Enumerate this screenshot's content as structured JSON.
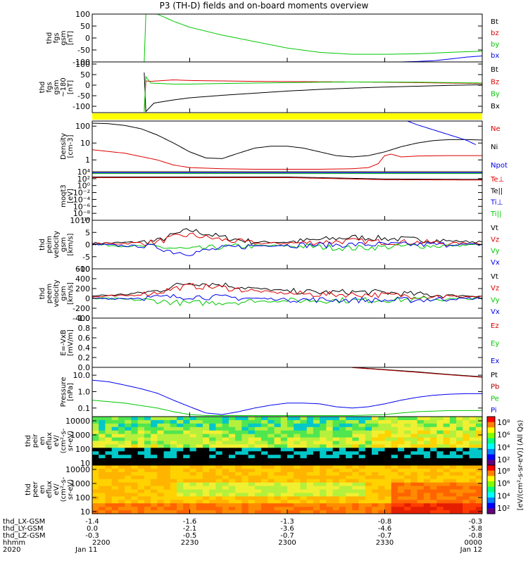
{
  "title": "P3 (TH-D) fields and on-board moments overview",
  "colors": {
    "black": "#000000",
    "red": "#dd0000",
    "green": "#00c800",
    "blue": "#0000ee",
    "yellow": "#ffff00",
    "darkred": "#b40000"
  },
  "chart_data": [
    {
      "type": "line",
      "ylabel": [
        "thd",
        "fgs",
        "gsm",
        "[nT]"
      ],
      "ylim": [
        -100,
        100
      ],
      "yticks": [
        "100",
        "50",
        "0",
        "-50",
        "-100"
      ],
      "legend": [
        {
          "name": "Bt",
          "color": "black"
        },
        {
          "name": "bz",
          "color": "red"
        },
        {
          "name": "by",
          "color": "green"
        },
        {
          "name": "bx",
          "color": "blue"
        }
      ],
      "series": [
        {
          "name": "by",
          "color": "green",
          "x": [
            2216,
            2216.5,
            2220,
            2225,
            2230,
            2240,
            2250,
            2300,
            2310,
            2320,
            2330,
            2340,
            2350,
            2400
          ],
          "y": [
            -100,
            100,
            100,
            70,
            45,
            12,
            -15,
            -42,
            -60,
            -68,
            -68,
            -66,
            -60,
            -55
          ]
        },
        {
          "name": "bx",
          "color": "blue",
          "x": [
            2335,
            2340,
            2345,
            2350,
            2355,
            2400
          ],
          "y": [
            -100,
            -98,
            -95,
            -88,
            -80,
            -75
          ]
        }
      ]
    },
    {
      "type": "line",
      "ylabel": [
        "thd",
        "fgs",
        "gsm",
        "~180",
        "[nT]"
      ],
      "ylim": [
        -130,
        110
      ],
      "yticks": [
        "100",
        "50",
        "0",
        "-50",
        "-100"
      ],
      "legend": [
        {
          "name": "Bt",
          "color": "black"
        },
        {
          "name": "Bz",
          "color": "red"
        },
        {
          "name": "By",
          "color": "green"
        },
        {
          "name": "Bx",
          "color": "black"
        }
      ],
      "series": [
        {
          "name": "Bx",
          "color": "black",
          "x": [
            2216,
            2216.5,
            2219,
            2225,
            2230,
            2240,
            2250,
            2300,
            2310,
            2320,
            2330,
            2340,
            2350,
            2400
          ],
          "y": [
            60,
            -125,
            -85,
            -70,
            -60,
            -48,
            -38,
            -28,
            -20,
            -14,
            -9,
            -5,
            -1,
            2
          ]
        },
        {
          "name": "Bz",
          "color": "red",
          "x": [
            2216,
            2216.5,
            2218,
            2225,
            2230,
            2240,
            2250,
            2300,
            2310,
            2320,
            2330,
            2340,
            2350,
            2400
          ],
          "y": [
            -125,
            20,
            18,
            25,
            22,
            20,
            18,
            17,
            16,
            15,
            14,
            12,
            10,
            8
          ]
        },
        {
          "name": "By",
          "color": "green",
          "x": [
            2216,
            2216.5,
            2218,
            2225,
            2230,
            2240,
            2250,
            2300,
            2310,
            2320,
            2330,
            2340,
            2350,
            2400
          ],
          "y": [
            -125,
            40,
            10,
            5,
            5,
            8,
            10,
            12,
            14,
            15,
            15,
            14,
            12,
            10
          ]
        }
      ]
    },
    {
      "type": "line",
      "ylabel": [
        "Density",
        "[cm-3]"
      ],
      "yscale": "log",
      "ylim": [
        0.2,
        200
      ],
      "yticks": [
        "100",
        "10",
        "1"
      ],
      "legend": [
        {
          "name": "Ne",
          "color": "red"
        },
        {
          "name": "Ni",
          "color": "black"
        },
        {
          "name": "Npot",
          "color": "blue"
        }
      ],
      "series": [
        {
          "name": "Ni",
          "color": "black",
          "x": [
            2200,
            2205,
            2210,
            2215,
            2220,
            2225,
            2230,
            2235,
            2240,
            2245,
            2250,
            2255,
            2300,
            2305,
            2310,
            2315,
            2320,
            2325,
            2330,
            2335,
            2340,
            2345,
            2350,
            2355,
            2400
          ],
          "y": [
            150,
            140,
            110,
            70,
            30,
            10,
            3,
            1.3,
            1.2,
            2.5,
            5,
            6.5,
            6.5,
            5,
            3,
            1.8,
            1.5,
            1.8,
            3,
            6,
            10,
            14,
            16,
            16,
            15
          ]
        },
        {
          "name": "Ne",
          "color": "red",
          "x": [
            2200,
            2210,
            2220,
            2225,
            2230,
            2240,
            2250,
            2300,
            2310,
            2320,
            2325,
            2328,
            2330,
            2332,
            2335,
            2340,
            2350,
            2400
          ],
          "y": [
            4,
            2.5,
            1,
            0.5,
            0.35,
            0.3,
            0.28,
            0.28,
            0.28,
            0.3,
            0.35,
            0.6,
            1.8,
            2.2,
            1.5,
            1.7,
            1.8,
            1.8
          ]
        },
        {
          "name": "Npot",
          "color": "blue",
          "x": [
            2337,
            2340,
            2345,
            2350,
            2355,
            2358
          ],
          "y": [
            200,
            120,
            60,
            30,
            15,
            8
          ]
        }
      ]
    },
    {
      "type": "line",
      "ylabel": [
        "moqt3",
        "[eV]"
      ],
      "yscale": "log",
      "ylim": [
        1e-10,
        10000.0
      ],
      "yticks": [
        "10⁴",
        "10²",
        "10⁰",
        "10⁻²",
        "10⁻⁴",
        "10⁻⁶",
        "10⁻⁸",
        "10⁻¹⁰"
      ],
      "legend": [
        {
          "name": "Te⊥",
          "color": "red"
        },
        {
          "name": "Te||",
          "color": "black"
        },
        {
          "name": "Ti⊥",
          "color": "blue"
        },
        {
          "name": "Ti||",
          "color": "green"
        }
      ],
      "series": [
        {
          "name": "Ti||",
          "color": "green",
          "x": [
            2200,
            2300,
            2400
          ],
          "y": [
            3000,
            3000,
            3000
          ]
        },
        {
          "name": "Ti⊥",
          "color": "blue",
          "x": [
            2200,
            2300,
            2400
          ],
          "y": [
            5000,
            5000,
            5000
          ]
        },
        {
          "name": "Te||",
          "color": "black",
          "x": [
            2200,
            2300,
            2330,
            2400
          ],
          "y": [
            300,
            300,
            80,
            60
          ]
        },
        {
          "name": "Te⊥",
          "color": "red",
          "x": [
            2200,
            2300,
            2330,
            2400
          ],
          "y": [
            200,
            200,
            50,
            40
          ]
        }
      ]
    },
    {
      "type": "line",
      "ylabel": [
        "thd",
        "peim",
        "velocity",
        "gsm",
        "[km/s]"
      ],
      "ylim": [
        -10,
        10
      ],
      "yticks": [
        "10",
        "5",
        "0",
        "-5",
        "-10"
      ],
      "legend": [
        {
          "name": "Vt",
          "color": "black"
        },
        {
          "name": "Vz",
          "color": "red"
        },
        {
          "name": "Vy",
          "color": "green"
        },
        {
          "name": "Vx",
          "color": "blue"
        }
      ],
      "series": [
        {
          "name": "Vt",
          "color": "black",
          "x": [
            2200,
            2210,
            2220,
            2225,
            2230,
            2240,
            2250,
            2300,
            2310,
            2320,
            2330,
            2340,
            2350,
            2400
          ],
          "y": [
            0.5,
            0.8,
            1.5,
            4,
            6,
            3,
            1,
            1,
            2,
            3,
            2.5,
            2,
            1.5,
            1
          ]
        },
        {
          "name": "Vz",
          "color": "red",
          "x": [
            2200,
            2210,
            2220,
            2225,
            2230,
            2240,
            2250,
            2300,
            2310,
            2320,
            2330,
            2340,
            2350,
            2400
          ],
          "y": [
            0.3,
            0.5,
            1,
            3,
            4,
            2,
            0.5,
            0.5,
            1,
            1.5,
            1,
            1,
            0.5,
            0.5
          ]
        },
        {
          "name": "Vy",
          "color": "green",
          "x": [
            2200,
            2210,
            2220,
            2225,
            2230,
            2240,
            2250,
            2300,
            2310,
            2320,
            2330,
            2340,
            2350,
            2400
          ],
          "y": [
            0,
            -0.5,
            -1,
            -1.5,
            -2,
            -1,
            -0.5,
            -0.5,
            -1,
            -1.5,
            -1,
            -0.5,
            -0.5,
            0
          ]
        },
        {
          "name": "Vx",
          "color": "blue",
          "x": [
            2200,
            2210,
            2220,
            2225,
            2230,
            2240,
            2250,
            2300,
            2310,
            2320,
            2330,
            2340,
            2350,
            2400
          ],
          "y": [
            0,
            -0.5,
            -1,
            -3,
            -3.5,
            -1.5,
            -0.5,
            -0.2,
            -0.2,
            0,
            0,
            0,
            0,
            0
          ]
        }
      ]
    },
    {
      "type": "line",
      "ylabel": [
        "thd",
        "peem",
        "velocity",
        "gsm",
        "[km/s]"
      ],
      "ylim": [
        -400,
        600
      ],
      "yticks": [
        "600",
        "400",
        "200",
        "0",
        "-200",
        "-400"
      ],
      "legend": [
        {
          "name": "Vt",
          "color": "black"
        },
        {
          "name": "Vz",
          "color": "red"
        },
        {
          "name": "Vy",
          "color": "green"
        },
        {
          "name": "Vx",
          "color": "blue"
        }
      ],
      "series": [
        {
          "name": "Vt",
          "color": "black",
          "x": [
            2200,
            2210,
            2220,
            2225,
            2230,
            2240,
            2250,
            2300,
            2310,
            2320,
            2330,
            2340,
            2350,
            2400
          ],
          "y": [
            50,
            80,
            150,
            250,
            320,
            280,
            200,
            150,
            120,
            130,
            120,
            80,
            60,
            50
          ]
        },
        {
          "name": "Vz",
          "color": "red",
          "x": [
            2200,
            2210,
            2220,
            2225,
            2230,
            2240,
            2250,
            2300,
            2310,
            2320,
            2330,
            2340,
            2350,
            2400
          ],
          "y": [
            30,
            50,
            120,
            200,
            250,
            220,
            150,
            100,
            80,
            80,
            70,
            50,
            40,
            30
          ]
        },
        {
          "name": "Vy",
          "color": "green",
          "x": [
            2200,
            2210,
            2220,
            2225,
            2230,
            2240,
            2250,
            2300,
            2310,
            2320,
            2330,
            2340,
            2350,
            2400
          ],
          "y": [
            0,
            -20,
            -50,
            -80,
            -100,
            -80,
            -60,
            -50,
            -40,
            -40,
            -30,
            -20,
            -10,
            0
          ]
        },
        {
          "name": "Vx",
          "color": "blue",
          "x": [
            2200,
            2210,
            2220,
            2225,
            2230,
            2240,
            2250,
            2300,
            2310,
            2320,
            2330,
            2340,
            2350,
            2400
          ],
          "y": [
            0,
            0,
            20,
            30,
            40,
            20,
            0,
            -20,
            -30,
            -30,
            -40,
            -30,
            -10,
            0
          ]
        }
      ]
    },
    {
      "type": "line",
      "ylabel": [
        "E=-VxB",
        "[mV/m]"
      ],
      "ylim": [
        0,
        1
      ],
      "yticks": [
        "1.0",
        "0.8",
        "0.6",
        "0.4",
        "0.2",
        "0.0"
      ],
      "legend": [
        {
          "name": "Ez",
          "color": "red"
        },
        {
          "name": "Ey",
          "color": "green"
        },
        {
          "name": "Ex",
          "color": "blue"
        }
      ],
      "series": []
    },
    {
      "type": "line",
      "ylabel": [
        "Pressure",
        "[nPa]"
      ],
      "yscale": "log",
      "ylim": [
        0.03,
        30
      ],
      "yticks": [
        "10.0",
        "1.0",
        "0.1"
      ],
      "legend": [
        {
          "name": "Pt",
          "color": "black"
        },
        {
          "name": "Pb",
          "color": "darkred"
        },
        {
          "name": "Pe",
          "color": "green"
        },
        {
          "name": "Pi",
          "color": "blue"
        }
      ],
      "series": [
        {
          "name": "Pi",
          "color": "blue",
          "x": [
            2200,
            2205,
            2210,
            2215,
            2220,
            2225,
            2230,
            2235,
            2240,
            2245,
            2250,
            2255,
            2300,
            2305,
            2310,
            2315,
            2320,
            2325,
            2330,
            2335,
            2340,
            2345,
            2350,
            2355,
            2400
          ],
          "y": [
            5,
            4,
            2.5,
            1.5,
            0.8,
            0.3,
            0.12,
            0.05,
            0.04,
            0.06,
            0.1,
            0.15,
            0.2,
            0.2,
            0.18,
            0.12,
            0.1,
            0.12,
            0.18,
            0.3,
            0.45,
            0.6,
            0.7,
            0.75,
            0.75
          ]
        },
        {
          "name": "Pe",
          "color": "green",
          "x": [
            2200,
            2210,
            2220,
            2225,
            2230,
            2235,
            2240,
            2250,
            2300,
            2310,
            2320,
            2330,
            2335,
            2340,
            2350,
            2400
          ],
          "y": [
            0.3,
            0.2,
            0.1,
            0.06,
            0.04,
            0.035,
            0.035,
            0.035,
            0.035,
            0.035,
            0.035,
            0.04,
            0.05,
            0.06,
            0.07,
            0.07
          ]
        },
        {
          "name": "Pt",
          "color": "black",
          "x": [
            2320,
            2330,
            2340,
            2350,
            2400
          ],
          "y": [
            30,
            22,
            16,
            11,
            8
          ]
        },
        {
          "name": "Pb",
          "color": "darkred",
          "x": [
            2320,
            2330,
            2340,
            2350,
            2400
          ],
          "y": [
            29,
            21,
            15,
            10.5,
            7.5
          ]
        }
      ]
    },
    {
      "type": "heatmap",
      "ylabel": [
        "thd",
        "peir",
        "en",
        "eflux",
        "eV/",
        "(cm²-s-",
        "sr-eV)"
      ],
      "yscale": "log",
      "ylim": [
        7,
        20000
      ],
      "yticks": [
        "10000",
        "1000",
        "100",
        "10"
      ]
    },
    {
      "type": "heatmap",
      "ylabel": [
        "thd",
        "peer",
        "en",
        "eflux",
        "eV/",
        "(cm²-s-",
        "sr-eV)"
      ],
      "yscale": "log",
      "ylim": [
        7,
        20000
      ],
      "yticks": [
        "10000",
        "1000",
        "100",
        "10"
      ]
    }
  ],
  "colorbar": {
    "label": "[eV/(cm²-s-sr-eV)] (All Qs)",
    "ticks_top": [
      "10⁸",
      "10⁶",
      "10⁴",
      "10²"
    ],
    "ticks_bottom": [
      "10⁸",
      "10⁶",
      "10⁴",
      "10²"
    ]
  },
  "xaxis": {
    "range": [
      2200,
      2400
    ],
    "time_labels": [
      "2200",
      "2230",
      "2300",
      "2330",
      "0000"
    ],
    "date_labels": [
      "Jan 11",
      "",
      "",
      "",
      "Jan 12"
    ],
    "row_labels": [
      "thd_LX-GSM",
      "thd_LY-GSM",
      "thd_LZ-GSM",
      "hhmm",
      "2020"
    ],
    "orbit_rows": [
      [
        "-1.4",
        "-1.6",
        "-1.3",
        "-0.8",
        "-0.3"
      ],
      [
        "0.0",
        "-2.1",
        "-3.6",
        "-4.6",
        "-5.8"
      ],
      [
        "-0.3",
        "-0.5",
        "-0.7",
        "-0.7",
        "-0.8"
      ]
    ]
  }
}
